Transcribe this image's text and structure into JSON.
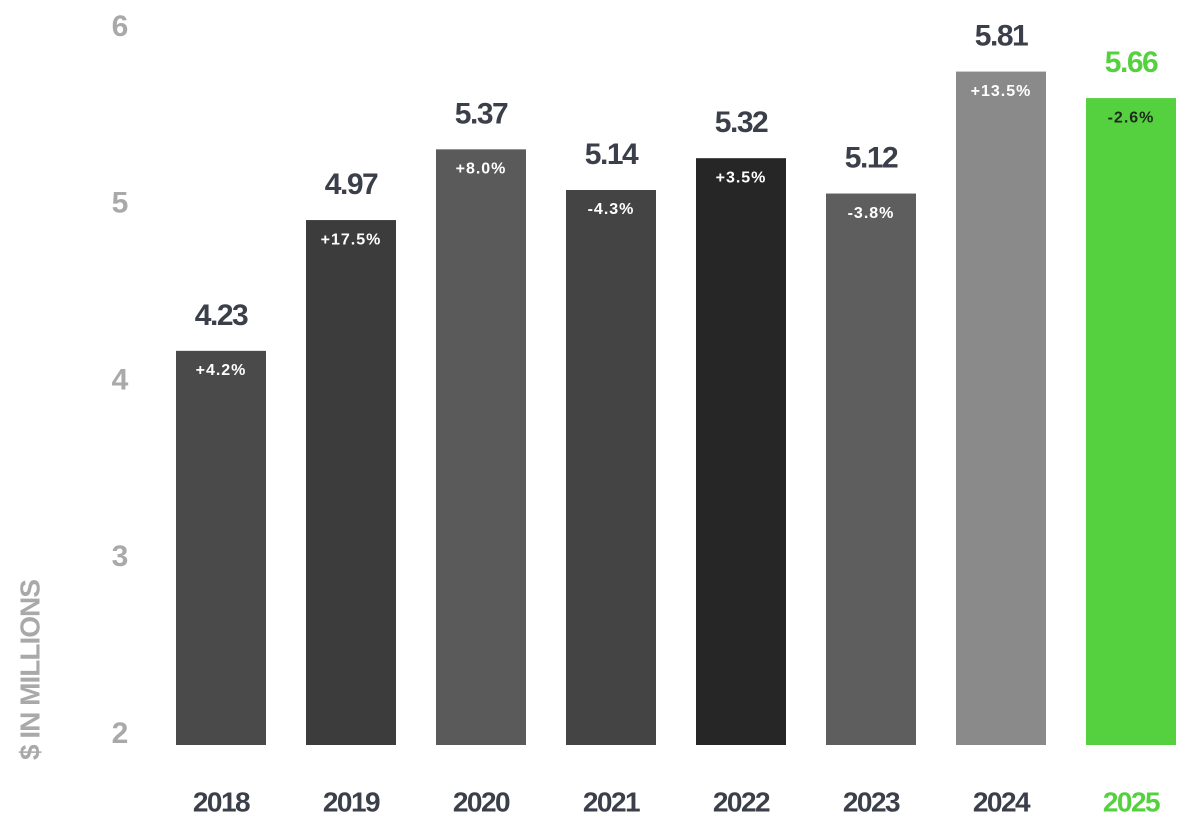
{
  "chart_data": {
    "type": "bar",
    "y_label": "$ IN MILLIONS",
    "categories": [
      "2018",
      "2019",
      "2020",
      "2021",
      "2022",
      "2023",
      "2024",
      "2025"
    ],
    "values": [
      4.23,
      4.97,
      5.37,
      5.14,
      5.32,
      5.12,
      5.81,
      5.66
    ],
    "annotations": [
      "+4.2%",
      "+17.5%",
      "+8.0%",
      "-4.3%",
      "+3.5%",
      "-3.8%",
      "+13.5%",
      "-2.6%"
    ],
    "colors": [
      "#4a4a4a",
      "#3c3c3c",
      "#5a5a5a",
      "#444444",
      "#262626",
      "#5e5e5e",
      "#8a8a8a",
      "#55d13f"
    ],
    "label_colors": [
      "#3b3f4a",
      "#3b3f4a",
      "#3b3f4a",
      "#3b3f4a",
      "#3b3f4a",
      "#3b3f4a",
      "#3b3f4a",
      "#55d13f"
    ],
    "annotation_colors": [
      "#ffffff",
      "#ffffff",
      "#ffffff",
      "#ffffff",
      "#ffffff",
      "#ffffff",
      "#ffffff",
      "#1e2a1a"
    ],
    "ylim": [
      2,
      6
    ],
    "yticks": [
      2,
      3,
      4,
      5,
      6
    ],
    "grid": false
  }
}
